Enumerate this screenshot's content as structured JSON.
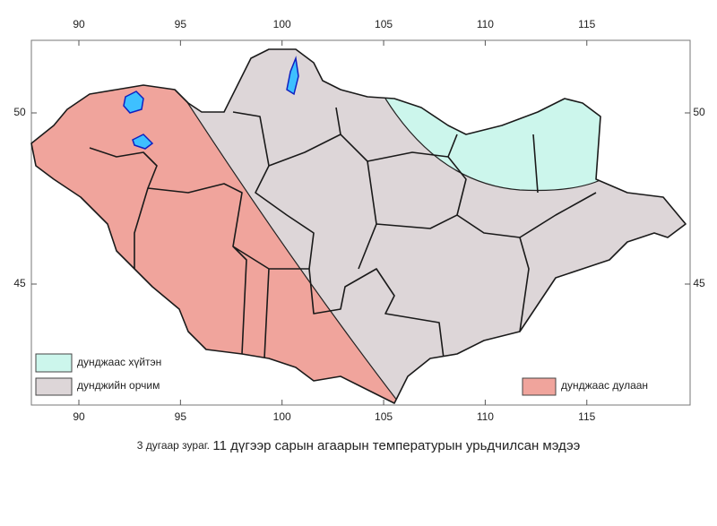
{
  "map": {
    "x_ticks": [
      90,
      95,
      100,
      105,
      110,
      115
    ],
    "y_ticks": [
      50,
      45
    ],
    "legend": [
      "дунджаас хүйтэн",
      "дунджийн орчим",
      "дунджаас дулаан"
    ],
    "caption": {
      "label": "3 дугаар зураг.",
      "text": "11 дүгээр сарын агаарын температурын урьдчилсан мэдээ"
    }
  }
}
